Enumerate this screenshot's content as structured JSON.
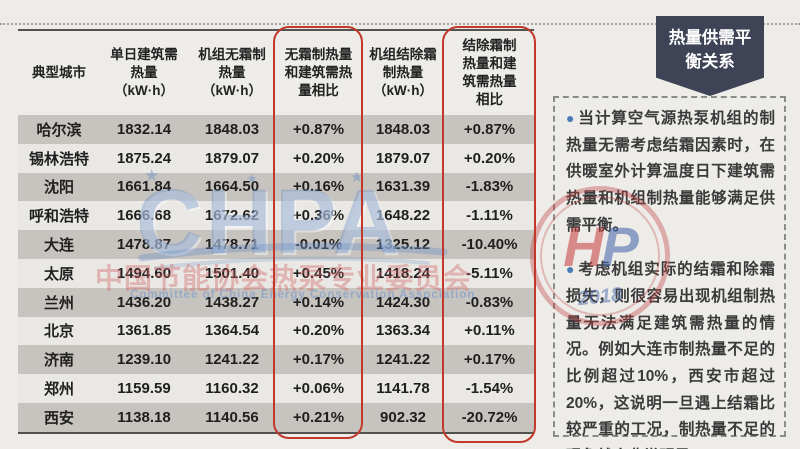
{
  "colors": {
    "background": "#edece8",
    "stripe_dark": "#c7c3be",
    "stripe_light": "#eae8e4",
    "highlight_red": "#c0392b",
    "ribbon_navy": "#3e4356",
    "bullet_blue": "#4a7ab5"
  },
  "ribbon": {
    "title": "热量供需平衡关系"
  },
  "table": {
    "columns": [
      {
        "key": "city",
        "label": "典型城市"
      },
      {
        "key": "demand",
        "label": "单日建筑需\n热量\n（kW·h）"
      },
      {
        "key": "frost_free",
        "label": "机组无霜制\n热量\n（kW·h）"
      },
      {
        "key": "ratio_frost_free",
        "label": "无霜制热量\n和建筑需热\n量相比",
        "highlighted": true
      },
      {
        "key": "defrost",
        "label": "机组结除霜\n制热量\n（kW·h）"
      },
      {
        "key": "ratio_defrost",
        "label": "结除霜制\n热量和建\n筑需热量\n相比",
        "highlighted": true
      }
    ],
    "rows": [
      {
        "city": "哈尔滨",
        "demand": "1832.14",
        "frost_free": "1848.03",
        "ratio_frost_free": "+0.87%",
        "defrost": "1848.03",
        "ratio_defrost": "+0.87%"
      },
      {
        "city": "锡林浩特",
        "demand": "1875.24",
        "frost_free": "1879.07",
        "ratio_frost_free": "+0.20%",
        "defrost": "1879.07",
        "ratio_defrost": "+0.20%"
      },
      {
        "city": "沈阳",
        "demand": "1661.84",
        "frost_free": "1664.50",
        "ratio_frost_free": "+0.16%",
        "defrost": "1631.39",
        "ratio_defrost": "-1.83%"
      },
      {
        "city": "呼和浩特",
        "demand": "1666.68",
        "frost_free": "1672.62",
        "ratio_frost_free": "+0.36%",
        "defrost": "1648.22",
        "ratio_defrost": "-1.11%"
      },
      {
        "city": "大连",
        "demand": "1478.87",
        "frost_free": "1478.71",
        "ratio_frost_free": "-0.01%",
        "defrost": "1325.12",
        "ratio_defrost": "-10.40%"
      },
      {
        "city": "太原",
        "demand": "1494.60",
        "frost_free": "1501.40",
        "ratio_frost_free": "+0.45%",
        "defrost": "1418.24",
        "ratio_defrost": "-5.11%"
      },
      {
        "city": "兰州",
        "demand": "1436.20",
        "frost_free": "1438.27",
        "ratio_frost_free": "+0.14%",
        "defrost": "1424.30",
        "ratio_defrost": "-0.83%"
      },
      {
        "city": "北京",
        "demand": "1361.85",
        "frost_free": "1364.54",
        "ratio_frost_free": "+0.20%",
        "defrost": "1363.34",
        "ratio_defrost": "+0.11%"
      },
      {
        "city": "济南",
        "demand": "1239.10",
        "frost_free": "1241.22",
        "ratio_frost_free": "+0.17%",
        "defrost": "1241.22",
        "ratio_defrost": "+0.17%"
      },
      {
        "city": "郑州",
        "demand": "1159.59",
        "frost_free": "1160.32",
        "ratio_frost_free": "+0.06%",
        "defrost": "1141.78",
        "ratio_defrost": "-1.54%"
      },
      {
        "city": "西安",
        "demand": "1138.18",
        "frost_free": "1140.56",
        "ratio_frost_free": "+0.21%",
        "defrost": "902.32",
        "ratio_defrost": "-20.72%"
      }
    ]
  },
  "panel": {
    "bullet_glyph": "●",
    "bullets": [
      "当计算空气源热泵机组的制热量无需考虑结霜因素时，在供暖室外计算温度日下建筑需热量和机组制热量能够满足供需平衡。",
      "考虑机组实际的结霜和除霜损失，则很容易出现机组制热量无法满足建筑需热量的情况。例如大连市制热量不足的比例超过10%，西安市超过20%，这说明一旦遇上结霜比较严重的工况，制热量不足的现象就会非常明显。"
    ]
  },
  "watermarks": {
    "chpa": "CHPA",
    "star_glyph": "★",
    "cn": "中国节能协会热泵专业委员会",
    "en": "Committee of China Energy Conservation Association",
    "stamp_h": "H",
    "stamp_p": "P",
    "stamp_year": "2018"
  }
}
